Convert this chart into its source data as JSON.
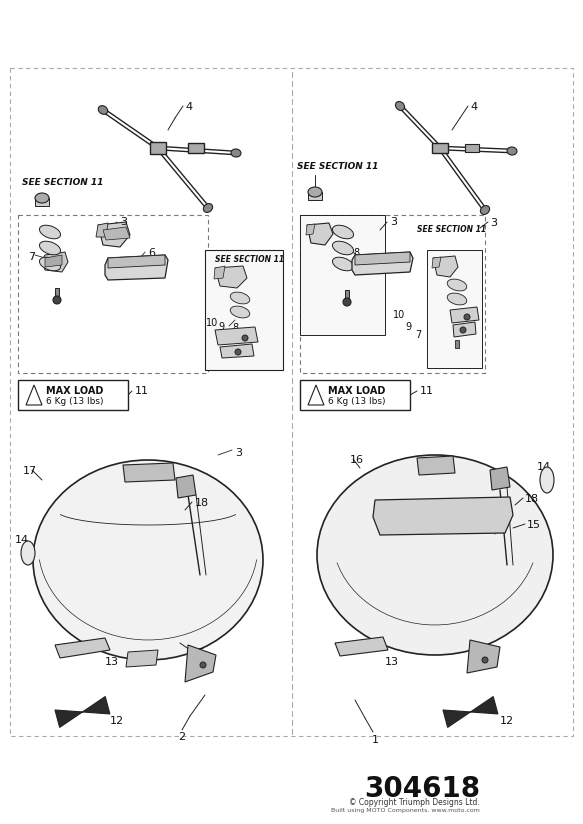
{
  "bg_color": "#ffffff",
  "line_color": "#222222",
  "diagram_number": "304618",
  "copyright_line1": "© Copyright Triumph Designs Ltd.",
  "copyright_line2": "Built using MOTO Components. www.moto.com"
}
